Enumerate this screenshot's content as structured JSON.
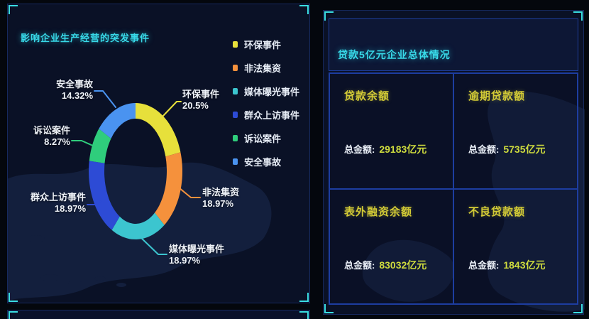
{
  "left_panel": {
    "title": "影响企业生产经营的突发事件"
  },
  "chart_data": {
    "type": "pie",
    "subtype": "donut",
    "title": "影响企业生产经营的突发事件",
    "legend_position": "right",
    "start_angle_deg": 0,
    "direction": "clockwise",
    "series": [
      {
        "name": "环保事件",
        "value": 20.5,
        "pct_label": "20.5%",
        "color": "#e7e03b"
      },
      {
        "name": "非法集资",
        "value": 18.97,
        "pct_label": "18.97%",
        "color": "#f5913c"
      },
      {
        "name": "媒体曝光事件",
        "value": 18.97,
        "pct_label": "18.97%",
        "color": "#3cc5cf"
      },
      {
        "name": "群众上访事件",
        "value": 18.97,
        "pct_label": "18.97%",
        "color": "#2d4bd5"
      },
      {
        "name": "诉讼案件",
        "value": 8.27,
        "pct_label": "8.27%",
        "color": "#2fcd7c"
      },
      {
        "name": "安全事故",
        "value": 14.32,
        "pct_label": "14.32%",
        "color": "#4a93f0"
      }
    ]
  },
  "right_panel": {
    "title": "贷款5亿元企业总体情况",
    "cards": [
      {
        "title": "贷款余额",
        "prefix": "总金额:",
        "amount": "29183亿元"
      },
      {
        "title": "逾期贷款额",
        "prefix": "总金额:",
        "amount": "5735亿元"
      },
      {
        "title": "表外融资余额",
        "prefix": "总金额:",
        "amount": "83032亿元"
      },
      {
        "title": "不良贷款额",
        "prefix": "总金额:",
        "amount": "1843亿元"
      }
    ]
  },
  "colors": {
    "accent_cyan": "#38d9e8",
    "bracket_cyan": "#3adde2",
    "grid_border_blue": "#1d3da0",
    "card_title_yellow": "#d3cb36",
    "amount_yellow": "#cfdc3e",
    "label_white": "#eef2f8",
    "panel_bg": "#0a1126",
    "page_bg": "#04070d",
    "map_silhouette": "#1b2b50"
  }
}
